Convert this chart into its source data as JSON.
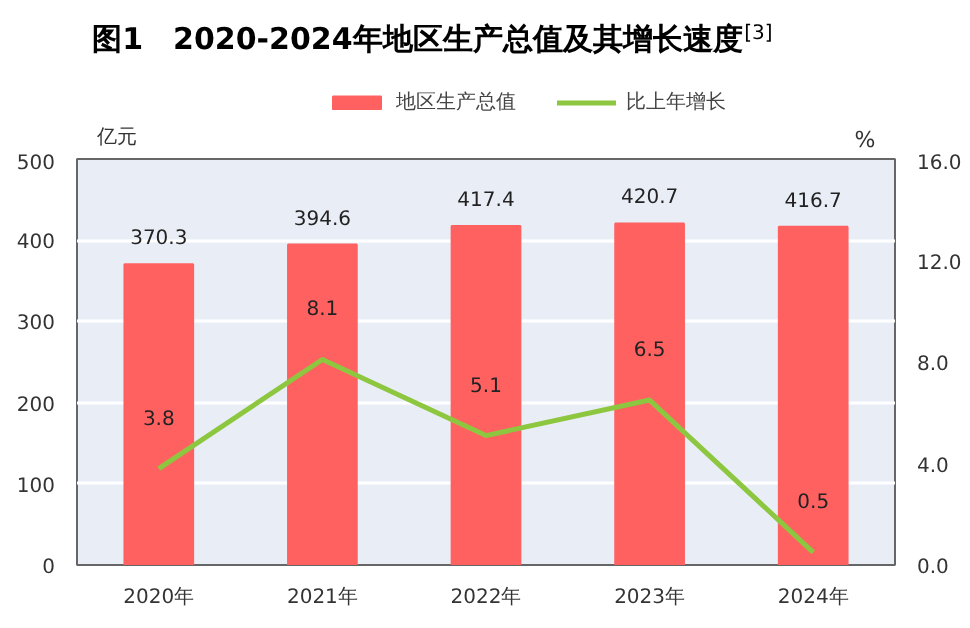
{
  "chart_data": {
    "type": "bar",
    "title": "图1　2020-2024年地区生产总值及其增长速度$^{[3]}$",
    "categories": [
      "2020年",
      "2021年",
      "2022年",
      "2023年",
      "2024年"
    ],
    "ylabel": "亿元",
    "y2label": "%",
    "series": [
      {
        "name": "地区生产总值",
        "color": "#ff6161",
        "values": [
          370.3,
          394.6,
          417.4,
          420.7,
          416.7
        ]
      },
      {
        "name": "比上年增长",
        "type": "line",
        "axis": "y2",
        "color": "#8dc63f",
        "values": [
          3.8,
          8.1,
          5.1,
          6.5,
          0.5
        ]
      }
    ],
    "ylim": [
      0,
      500
    ],
    "yticks": [
      0,
      100,
      200,
      300,
      400,
      500
    ],
    "y2lim": [
      0.0,
      16.0
    ],
    "y2ticks": [
      {
        "value": 0,
        "label": "0.0"
      },
      {
        "value": 4,
        "label": "4.0"
      },
      {
        "value": 8,
        "label": "8.0"
      },
      {
        "value": 12,
        "label": "12.0"
      },
      {
        "value": 16,
        "label": "16.0"
      }
    ],
    "grid": "y",
    "legend": "top",
    "data_labels": true,
    "marker": "none",
    "line_style": "solid"
  }
}
